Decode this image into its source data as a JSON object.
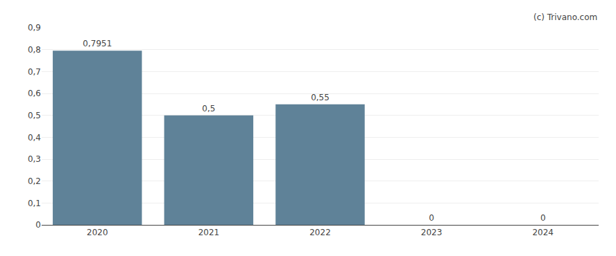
{
  "chart_data": {
    "type": "bar",
    "categories": [
      "2020",
      "2021",
      "2022",
      "2023",
      "2024"
    ],
    "values": [
      0.7951,
      0.5,
      0.55,
      0,
      0
    ],
    "value_labels": [
      "0,7951",
      "0,5",
      "0,55",
      "0",
      "0"
    ],
    "data_labels": true,
    "color": "#5f8298",
    "ylim": [
      0,
      0.9
    ],
    "yticks": [
      0,
      {
        "value": 0.1,
        "label": "0,1"
      },
      {
        "value": 0.2,
        "label": "0,2"
      },
      {
        "value": 0.3,
        "label": "0,3"
      },
      {
        "value": 0.4,
        "label": "0,4"
      },
      {
        "value": 0.5,
        "label": "0,5"
      },
      {
        "value": 0.6,
        "label": "0,6"
      },
      {
        "value": 0.7,
        "label": "0,7"
      },
      {
        "value": 0.8,
        "label": "0,8"
      },
      {
        "value": 0.9,
        "label": "0,9"
      }
    ],
    "grid": true,
    "annotations": [
      "(c) Trivano.com"
    ]
  }
}
